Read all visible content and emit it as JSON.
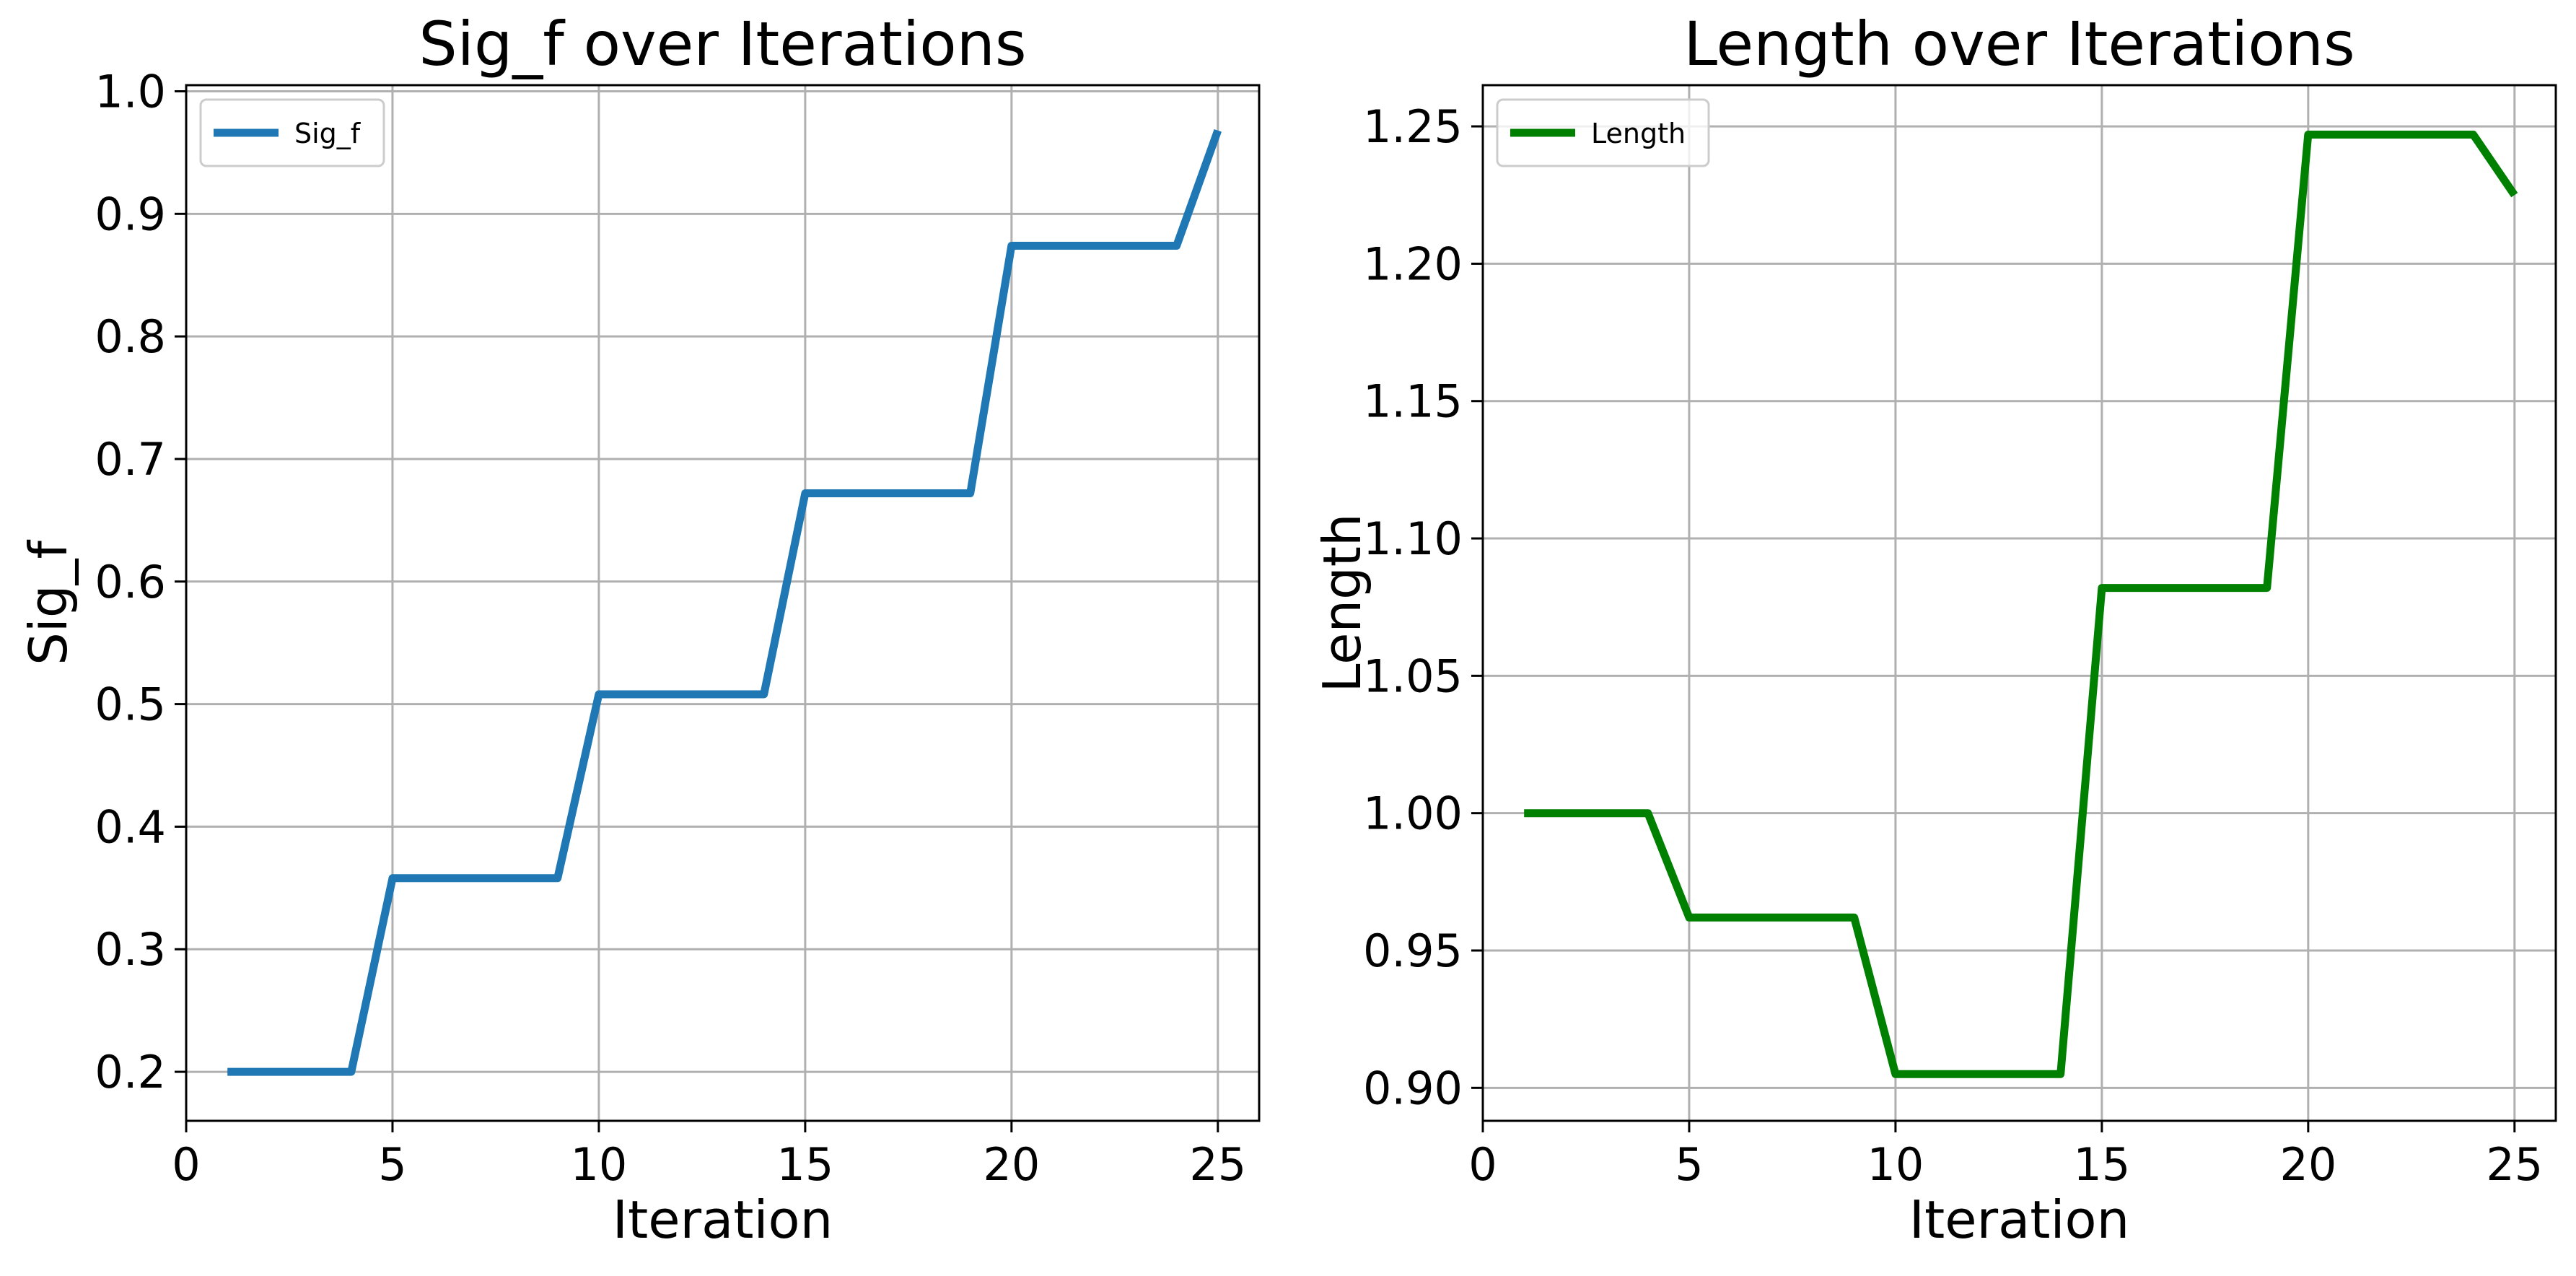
{
  "chart_data": [
    {
      "type": "line",
      "title": "Sig_f over Iterations",
      "xlabel": "Iteration",
      "ylabel": "Sig_f",
      "xlim": [
        0,
        26
      ],
      "ylim": [
        0.16,
        1.005
      ],
      "xticks": [
        0,
        5,
        10,
        15,
        20,
        25
      ],
      "xtick_labels": [
        "0",
        "5",
        "10",
        "15",
        "20",
        "25"
      ],
      "yticks": [
        0.2,
        0.3,
        0.4,
        0.5,
        0.6,
        0.7,
        0.8,
        0.9,
        1.0
      ],
      "ytick_labels": [
        "0.2",
        "0.3",
        "0.4",
        "0.5",
        "0.6",
        "0.7",
        "0.8",
        "0.9",
        "1.0"
      ],
      "grid": true,
      "legend_position": "top-left",
      "series": [
        {
          "name": "Sig_f",
          "color": "#1f77b4",
          "x": [
            1,
            2,
            3,
            4,
            5,
            6,
            7,
            8,
            9,
            10,
            11,
            12,
            13,
            14,
            15,
            16,
            17,
            18,
            19,
            20,
            21,
            22,
            23,
            24,
            25
          ],
          "y": [
            0.2,
            0.2,
            0.2,
            0.2,
            0.358,
            0.358,
            0.358,
            0.358,
            0.358,
            0.508,
            0.508,
            0.508,
            0.508,
            0.508,
            0.672,
            0.672,
            0.672,
            0.672,
            0.672,
            0.874,
            0.874,
            0.874,
            0.874,
            0.874,
            0.968
          ]
        }
      ]
    },
    {
      "type": "line",
      "title": "Length over Iterations",
      "xlabel": "Iteration",
      "ylabel": "Length",
      "xlim": [
        0,
        26
      ],
      "ylim": [
        0.888,
        1.265
      ],
      "xticks": [
        0,
        5,
        10,
        15,
        20,
        25
      ],
      "xtick_labels": [
        "0",
        "5",
        "10",
        "15",
        "20",
        "25"
      ],
      "yticks": [
        0.9,
        0.95,
        1.0,
        1.05,
        1.1,
        1.15,
        1.2,
        1.25
      ],
      "ytick_labels": [
        "0.90",
        "0.95",
        "1.00",
        "1.05",
        "1.10",
        "1.15",
        "1.20",
        "1.25"
      ],
      "grid": true,
      "legend_position": "top-left",
      "series": [
        {
          "name": "Length",
          "color": "#008000",
          "x": [
            1,
            2,
            3,
            4,
            5,
            6,
            7,
            8,
            9,
            10,
            11,
            12,
            13,
            14,
            15,
            16,
            17,
            18,
            19,
            20,
            21,
            22,
            23,
            24,
            25
          ],
          "y": [
            1.0,
            1.0,
            1.0,
            1.0,
            0.962,
            0.962,
            0.962,
            0.962,
            0.962,
            0.905,
            0.905,
            0.905,
            0.905,
            0.905,
            1.082,
            1.082,
            1.082,
            1.082,
            1.082,
            1.247,
            1.247,
            1.247,
            1.247,
            1.247,
            1.225
          ]
        }
      ]
    }
  ]
}
